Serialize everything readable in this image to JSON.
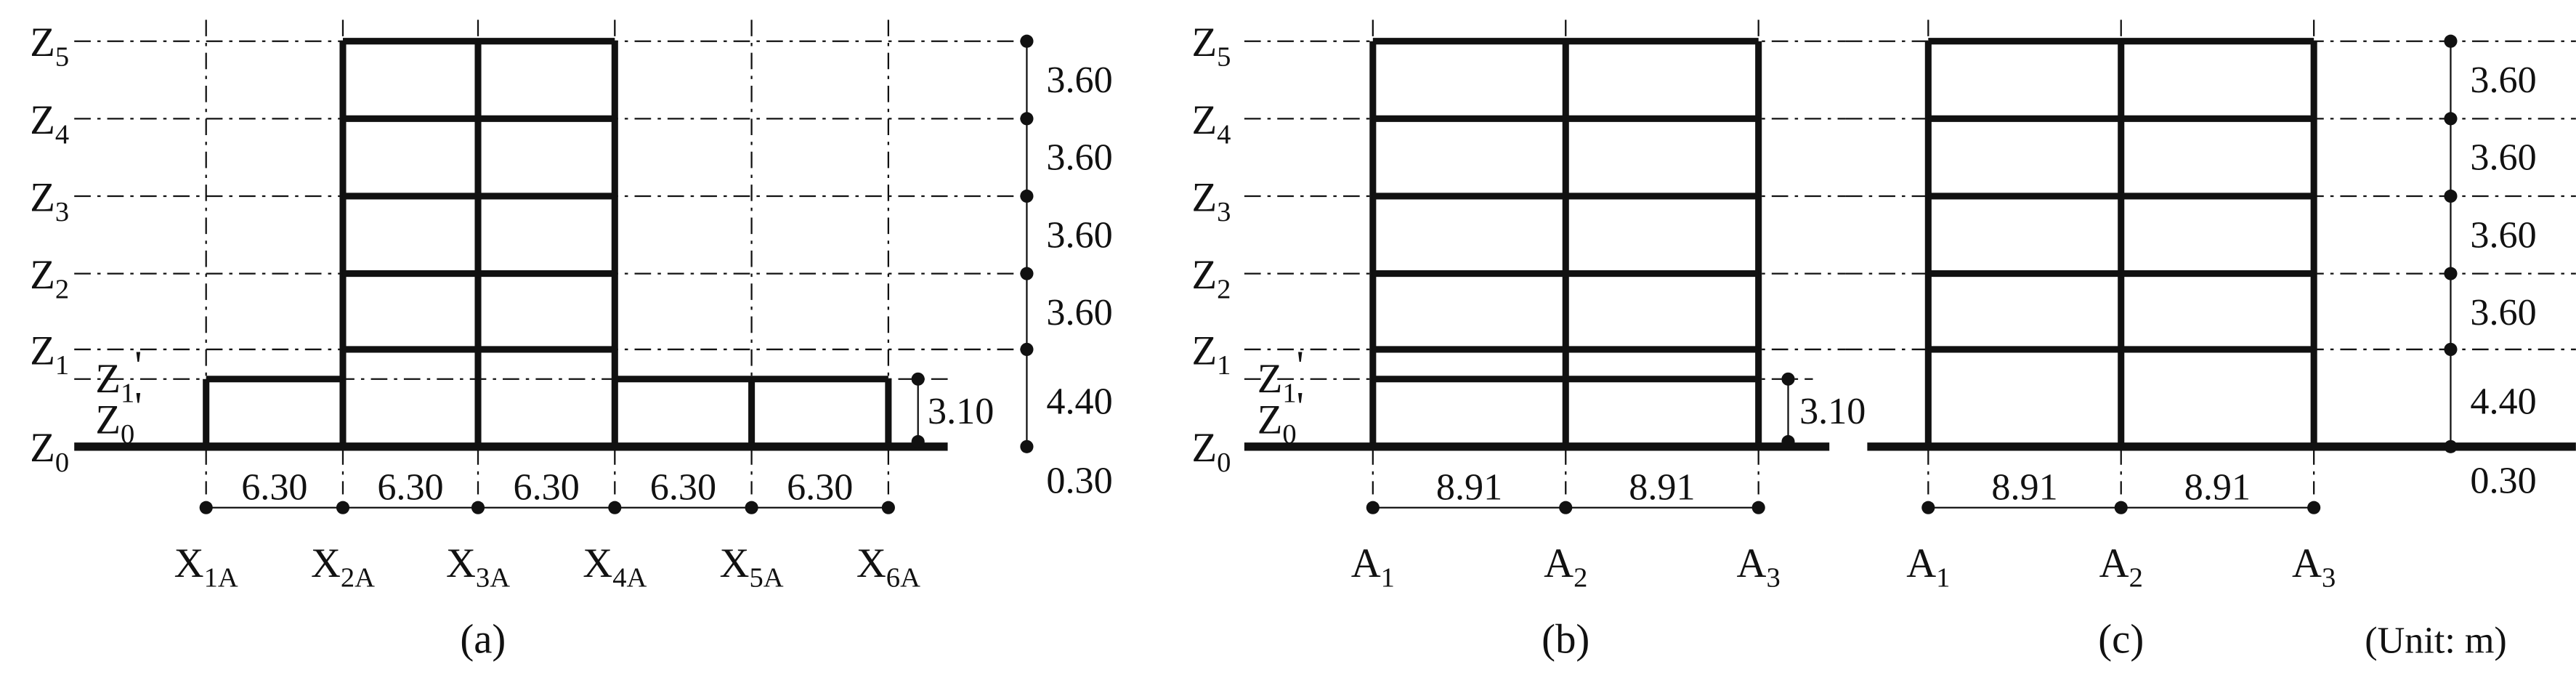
{
  "panels": [
    {
      "caption": "(a)",
      "levels": [
        {
          "base": "Z",
          "sub": "5"
        },
        {
          "base": "Z",
          "sub": "4"
        },
        {
          "base": "Z",
          "sub": "3"
        },
        {
          "base": "Z",
          "sub": "2"
        },
        {
          "base": "Z",
          "sub": "1"
        },
        {
          "base": "Z",
          "sub": "0"
        }
      ],
      "level_primes": [
        {
          "base": "Z",
          "sub": "1",
          "suffix": "'"
        },
        {
          "base": "Z",
          "sub": "0",
          "suffix": "'"
        }
      ],
      "heights": [
        "3.60",
        "3.60",
        "3.60",
        "3.60",
        "4.40",
        "0.30"
      ],
      "small_height": "3.10",
      "spans": [
        "6.30",
        "6.30",
        "6.30",
        "6.30",
        "6.30"
      ],
      "axes": [
        {
          "base": "X",
          "sub": "1A"
        },
        {
          "base": "X",
          "sub": "2A"
        },
        {
          "base": "X",
          "sub": "3A"
        },
        {
          "base": "X",
          "sub": "4A"
        },
        {
          "base": "X",
          "sub": "5A"
        },
        {
          "base": "X",
          "sub": "6A"
        }
      ]
    },
    {
      "caption": "(b)",
      "levels": [
        {
          "base": "Z",
          "sub": "5"
        },
        {
          "base": "Z",
          "sub": "4"
        },
        {
          "base": "Z",
          "sub": "3"
        },
        {
          "base": "Z",
          "sub": "2"
        },
        {
          "base": "Z",
          "sub": "1"
        },
        {
          "base": "Z",
          "sub": "0"
        }
      ],
      "level_primes": [
        {
          "base": "Z",
          "sub": "1",
          "suffix": "'"
        },
        {
          "base": "Z",
          "sub": "0",
          "suffix": "'"
        }
      ],
      "small_height": "3.10",
      "spans": [
        "8.91",
        "8.91"
      ],
      "axes": [
        {
          "base": "A",
          "sub": "1"
        },
        {
          "base": "A",
          "sub": "2"
        },
        {
          "base": "A",
          "sub": "3"
        }
      ]
    },
    {
      "caption": "(c)",
      "heights": [
        "3.60",
        "3.60",
        "3.60",
        "3.60",
        "4.40",
        "0.30"
      ],
      "spans": [
        "8.91",
        "8.91"
      ],
      "axes": [
        {
          "base": "A",
          "sub": "1"
        },
        {
          "base": "A",
          "sub": "2"
        },
        {
          "base": "A",
          "sub": "3"
        }
      ]
    }
  ],
  "unit": "(Unit: m)"
}
